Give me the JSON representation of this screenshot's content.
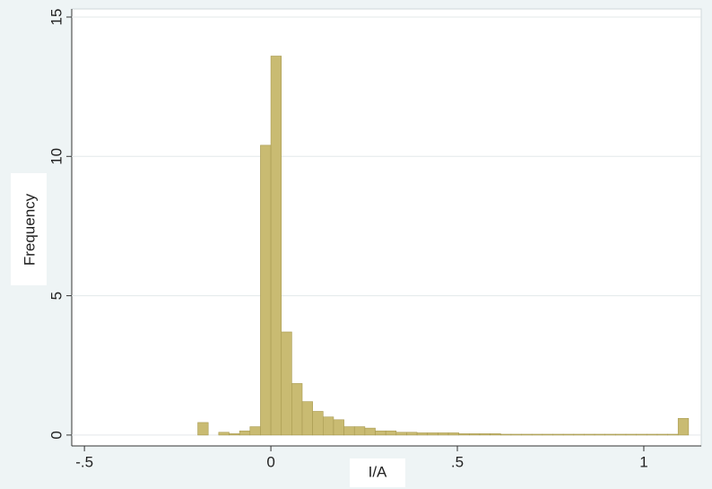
{
  "chart_data": {
    "type": "histogram",
    "x_label": "I/A",
    "y_label": "Frequency",
    "bins": [
      -0.196,
      -0.168,
      -0.14,
      -0.112,
      -0.084,
      -0.056,
      -0.028,
      0,
      0.028,
      0.056,
      0.084,
      0.112,
      0.14,
      0.168,
      0.196,
      0.224,
      0.252,
      0.28,
      0.308,
      0.336,
      0.364,
      0.392,
      0.42,
      0.448,
      0.476,
      0.504,
      0.532,
      0.56,
      0.588,
      0.616,
      0.644,
      0.672,
      0.7,
      0.728,
      0.756,
      0.784,
      0.812,
      0.84,
      0.868,
      0.896,
      0.924,
      0.952,
      0.98,
      1.008,
      1.036,
      1.064,
      1.092,
      1.12
    ],
    "values": [
      0.45,
      0,
      0.1,
      0.05,
      0.15,
      0.3,
      10.4,
      13.6,
      3.7,
      1.85,
      1.2,
      0.85,
      0.65,
      0.55,
      0.3,
      0.3,
      0.25,
      0.15,
      0.15,
      0.1,
      0.1,
      0.08,
      0.08,
      0.08,
      0.08,
      0.05,
      0.05,
      0.05,
      0.05,
      0.03,
      0.03,
      0.03,
      0.03,
      0.03,
      0.03,
      0.03,
      0.03,
      0.03,
      0.03,
      0.03,
      0.03,
      0.03,
      0.03,
      0.03,
      0.03,
      0.03,
      0.6
    ],
    "color": "#c9bb72",
    "edge_color": "#a89a50",
    "xlim": [
      -0.534,
      1.154
    ],
    "ylim": [
      -0.39,
      15.29
    ],
    "xticks": [
      {
        "value": -0.5,
        "label": "-.5"
      },
      0,
      {
        "value": 0.5,
        "label": ".5"
      },
      1
    ],
    "yticks": [
      0,
      5,
      10,
      15
    ],
    "grid": true
  }
}
